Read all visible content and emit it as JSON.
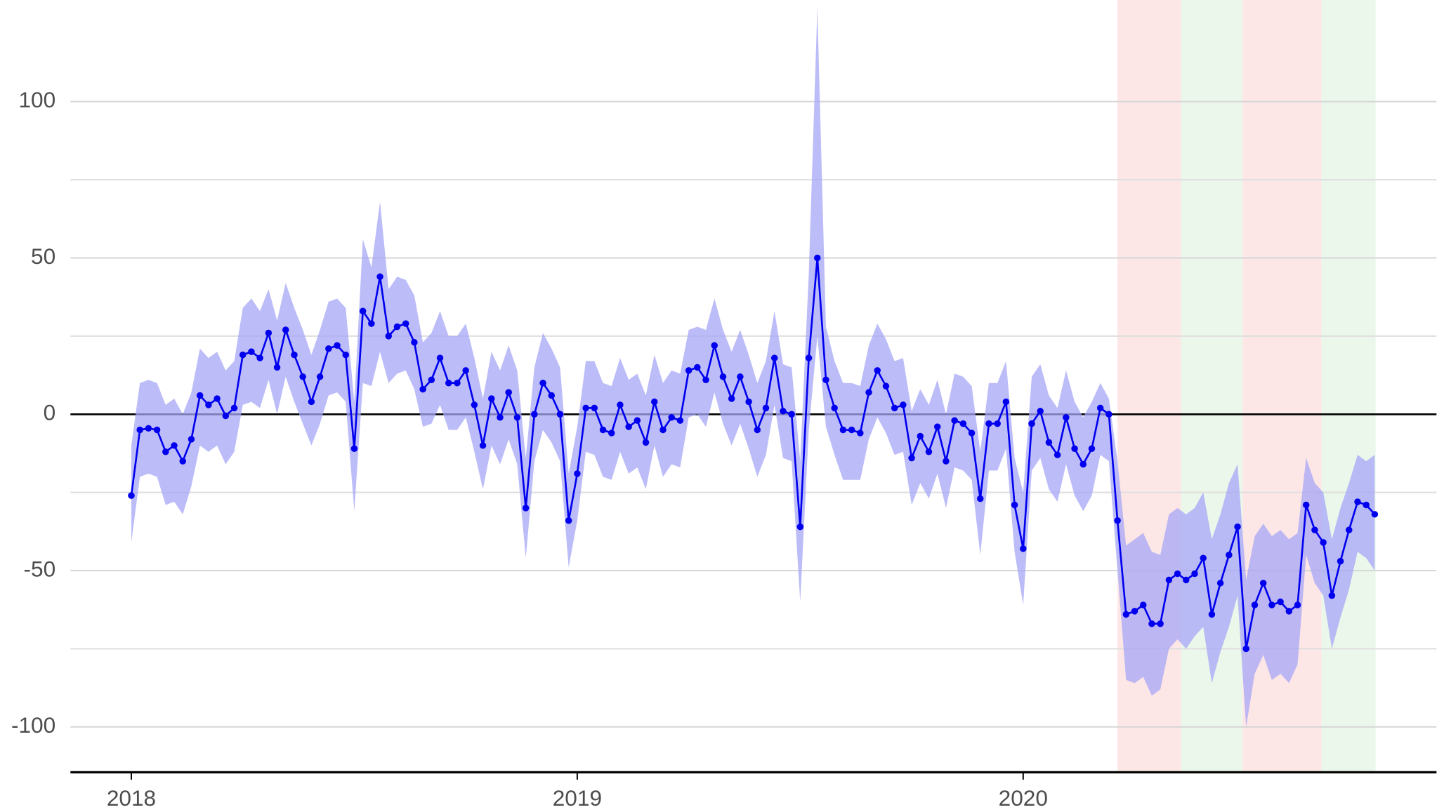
{
  "chart_data": {
    "type": "line",
    "xlim": [
      -7.1,
      152.2
    ],
    "ylim": [
      -114.5,
      132.5
    ],
    "xticks": [
      {
        "value": 0,
        "label": "2018"
      },
      {
        "value": 52,
        "label": "2019"
      },
      {
        "value": 104,
        "label": "2020"
      }
    ],
    "yticks": [
      -100,
      -50,
      0,
      50,
      100
    ],
    "minor_yticks": [
      -75,
      -25,
      25,
      75
    ],
    "grid": true,
    "regions": [
      {
        "start": 115,
        "end": 122.4,
        "color": "#fde6e6"
      },
      {
        "start": 122.4,
        "end": 129.6,
        "color": "#eaf7ea"
      },
      {
        "start": 129.6,
        "end": 138.8,
        "color": "#fde6e6"
      },
      {
        "start": 138.8,
        "end": 145.1,
        "color": "#eaf7ea"
      }
    ],
    "band_color": "#a6a6f7",
    "series": [
      {
        "color": "#0000ee",
        "values": [
          -26,
          -5,
          -4.5,
          -5,
          -12,
          -10,
          -15,
          -8,
          6,
          3,
          5,
          -0.5,
          2,
          19,
          20,
          18,
          26,
          15,
          27,
          19,
          12,
          4,
          12,
          21,
          22,
          19,
          -11,
          33,
          29,
          44,
          25,
          28,
          29,
          23,
          8,
          11,
          18,
          10,
          10,
          14,
          3,
          -10,
          5,
          -1,
          7,
          -1,
          -30,
          0,
          10,
          6,
          0,
          -34,
          -19,
          2,
          2,
          -5,
          -6,
          3,
          -4,
          -2,
          -9,
          4,
          -5,
          -1,
          -2,
          14,
          15,
          11,
          22,
          12,
          5,
          12,
          4,
          -5,
          2,
          18,
          1,
          0,
          -36,
          18,
          50,
          11,
          2,
          -5,
          -5,
          -6,
          7,
          14,
          9,
          2,
          3,
          -14,
          -7,
          -12,
          -4,
          -15,
          -2,
          -3,
          -6,
          -27,
          -3,
          -3,
          4,
          -29,
          -43,
          -3,
          1,
          -9,
          -13,
          -1,
          -11,
          -16,
          -11,
          2,
          0,
          -34,
          -64,
          -63,
          -61,
          -67,
          -67,
          -53,
          -51,
          -53,
          -51,
          -46,
          -64,
          -54,
          -45,
          -36,
          -75,
          -61,
          -54,
          -61,
          -60,
          -63,
          -61,
          -29,
          -37,
          -41,
          -58,
          -47,
          -37,
          -28,
          -29,
          -32
        ],
        "upper": [
          -10,
          10,
          11,
          10,
          3,
          5,
          0,
          7,
          21,
          18,
          20,
          14,
          17,
          34,
          37,
          33,
          40,
          30,
          42,
          34,
          27,
          19,
          27,
          36,
          37,
          34,
          4,
          56,
          47,
          68,
          40,
          44,
          43,
          38,
          23,
          26,
          33,
          25,
          25,
          29,
          18,
          5,
          20,
          14,
          22,
          14,
          -14,
          15,
          26,
          21,
          15,
          -19,
          -4,
          17,
          17,
          10,
          9,
          18,
          11,
          13,
          6,
          19,
          10,
          14,
          13,
          27,
          28,
          27,
          37,
          27,
          20,
          27,
          19,
          10,
          17,
          33,
          16,
          15,
          -15,
          45,
          130,
          28,
          17,
          10,
          10,
          9,
          22,
          29,
          24,
          17,
          18,
          1,
          8,
          3,
          11,
          0,
          13,
          12,
          9,
          -12,
          10,
          10,
          17,
          -14,
          -25,
          12,
          16,
          6,
          2,
          14,
          4,
          -1,
          4,
          10,
          5,
          -15,
          -42,
          -40,
          -38,
          -44,
          -45,
          -32,
          -30,
          -32,
          -30,
          -25,
          -40,
          -32,
          -22,
          -16,
          -53,
          -39,
          -35,
          -39,
          -37,
          -40,
          -38,
          -14,
          -22,
          -25,
          -40,
          -30,
          -22,
          -13,
          -15,
          -13
        ],
        "lower": [
          -41,
          -20,
          -19,
          -20,
          -29,
          -28,
          -32,
          -23,
          -10,
          -12,
          -10,
          -16,
          -12,
          3,
          4,
          2,
          11,
          0,
          12,
          4,
          -3,
          -10,
          -3,
          6,
          7,
          4,
          -31,
          10,
          9,
          20,
          10,
          13,
          14,
          8,
          -4,
          -3,
          3,
          -5,
          -5,
          -1,
          -12,
          -24,
          -10,
          -16,
          -8,
          -16,
          -46,
          -15,
          -5,
          -9,
          -15,
          -49,
          -34,
          -12,
          -13,
          -20,
          -21,
          -12,
          -19,
          -17,
          -24,
          -10,
          -20,
          -16,
          -17,
          -1,
          0,
          -4,
          7,
          -3,
          -10,
          -3,
          -11,
          -20,
          -13,
          3,
          -14,
          -15,
          -60,
          -5,
          25,
          -4,
          -13,
          -21,
          -21,
          -21,
          -8,
          -1,
          -6,
          -13,
          -12,
          -29,
          -22,
          -27,
          -19,
          -30,
          -17,
          -18,
          -21,
          -45,
          -18,
          -18,
          -11,
          -44,
          -61,
          -18,
          -14,
          -24,
          -28,
          -16,
          -26,
          -31,
          -26,
          -13,
          -15,
          -50,
          -85,
          -86,
          -84,
          -90,
          -88,
          -75,
          -72,
          -75,
          -71,
          -68,
          -86,
          -76,
          -68,
          -58,
          -100,
          -83,
          -77,
          -85,
          -83,
          -86,
          -80,
          -45,
          -54,
          -58,
          -75,
          -65,
          -56,
          -44,
          -46,
          -50
        ]
      }
    ]
  }
}
